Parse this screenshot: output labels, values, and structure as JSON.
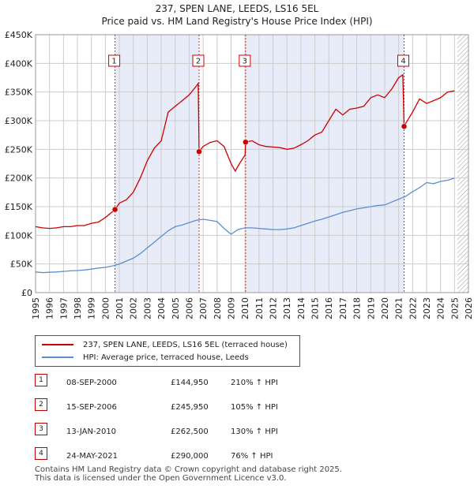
{
  "title": {
    "line1": "237, SPEN LANE, LEEDS, LS16 5EL",
    "line2": "Price paid vs. HM Land Registry's House Price Index (HPI)"
  },
  "colors": {
    "property": "#cc0000",
    "hpi": "#5b8ed0",
    "shade": "#dde4f5",
    "grid": "#cccccc",
    "marker_border": "#cc0000",
    "future_hatch": "#999999"
  },
  "legend": {
    "property_label": "237, SPEN LANE, LEEDS, LS16 5EL (terraced house)",
    "hpi_label": "HPI: Average price, terraced house, Leeds"
  },
  "sales": [
    {
      "num": "1",
      "date": "08-SEP-2000",
      "price": "£144,950",
      "hpi": "210% ↑ HPI"
    },
    {
      "num": "2",
      "date": "15-SEP-2006",
      "price": "£245,950",
      "hpi": "105% ↑ HPI"
    },
    {
      "num": "3",
      "date": "13-JAN-2010",
      "price": "£262,500",
      "hpi": "130% ↑ HPI"
    },
    {
      "num": "4",
      "date": "24-MAY-2021",
      "price": "£290,000",
      "hpi": "76% ↑ HPI"
    }
  ],
  "footer": {
    "line1": "Contains HM Land Registry data © Crown copyright and database right 2025.",
    "line2": "This data is licensed under the Open Government Licence v3.0."
  },
  "chart_data": {
    "type": "line",
    "title": "237, SPEN LANE, LEEDS, LS16 5EL",
    "subtitle": "Price paid vs. HM Land Registry's House Price Index (HPI)",
    "xlabel": "",
    "ylabel": "",
    "xlim": [
      1995,
      2026
    ],
    "ylim": [
      0,
      450000
    ],
    "x_ticks": [
      1995,
      1996,
      1997,
      1998,
      1999,
      2000,
      2001,
      2002,
      2003,
      2004,
      2005,
      2006,
      2007,
      2008,
      2009,
      2010,
      2011,
      2012,
      2013,
      2014,
      2015,
      2016,
      2017,
      2018,
      2019,
      2020,
      2021,
      2022,
      2023,
      2024,
      2025,
      2026
    ],
    "x_tick_labels": [
      "1995",
      "1996",
      "1997",
      "1998",
      "1999",
      "2000",
      "2001",
      "2002",
      "2003",
      "2004",
      "2005",
      "2006",
      "2007",
      "2008",
      "2009",
      "2010",
      "2011",
      "2012",
      "2013",
      "2014",
      "2015",
      "2016",
      "2017",
      "2018",
      "2019",
      "2020",
      "2021",
      "2022",
      "2023",
      "2024",
      "2025",
      "2026"
    ],
    "y_ticks": [
      0,
      50000,
      100000,
      150000,
      200000,
      250000,
      300000,
      350000,
      400000,
      450000
    ],
    "y_tick_labels": [
      "£0",
      "£50K",
      "£100K",
      "£150K",
      "£200K",
      "£250K",
      "£300K",
      "£350K",
      "£400K",
      "£450K"
    ],
    "grid": true,
    "legend_position": "bottom",
    "shaded_periods": [
      [
        2000.69,
        2006.71
      ],
      [
        2010.04,
        2021.39
      ]
    ],
    "future_hatch_from": 2025.2,
    "series": [
      {
        "name": "237, SPEN LANE, LEEDS, LS16 5EL (terraced house)",
        "x": [
          1995.0,
          1995.5,
          1996.0,
          1996.5,
          1997.0,
          1997.5,
          1998.0,
          1998.5,
          1999.0,
          1999.5,
          2000.0,
          2000.69,
          2001.0,
          2001.5,
          2002.0,
          2002.5,
          2003.0,
          2003.5,
          2004.0,
          2004.5,
          2005.0,
          2005.5,
          2006.0,
          2006.5,
          2006.65,
          2006.71,
          2007.0,
          2007.5,
          2008.0,
          2008.5,
          2009.0,
          2009.3,
          2009.6,
          2010.0,
          2010.04,
          2010.5,
          2011.0,
          2011.5,
          2012.0,
          2012.5,
          2013.0,
          2013.5,
          2014.0,
          2014.5,
          2015.0,
          2015.5,
          2016.0,
          2016.5,
          2017.0,
          2017.5,
          2018.0,
          2018.5,
          2019.0,
          2019.5,
          2020.0,
          2020.5,
          2021.0,
          2021.3,
          2021.35,
          2021.39,
          2021.5,
          2022.0,
          2022.5,
          2023.0,
          2023.5,
          2024.0,
          2024.5,
          2025.0
        ],
        "values": [
          115000,
          113000,
          112000,
          113000,
          115000,
          115000,
          117000,
          117000,
          121000,
          123000,
          131000,
          144950,
          156000,
          162000,
          175000,
          200000,
          230000,
          252000,
          265000,
          315000,
          325000,
          335000,
          345000,
          360000,
          365000,
          245950,
          255000,
          262000,
          265000,
          255000,
          225000,
          212000,
          225000,
          240000,
          262500,
          265000,
          258000,
          255000,
          254000,
          253000,
          250000,
          252000,
          258000,
          265000,
          275000,
          280000,
          300000,
          320000,
          310000,
          320000,
          322000,
          325000,
          340000,
          345000,
          340000,
          355000,
          375000,
          380000,
          330000,
          290000,
          295000,
          315000,
          338000,
          330000,
          335000,
          340000,
          350000,
          352000
        ]
      },
      {
        "name": "HPI: Average price, terraced house, Leeds",
        "x": [
          1995.0,
          1995.5,
          1996.0,
          1996.5,
          1997.0,
          1997.5,
          1998.0,
          1998.5,
          1999.0,
          1999.5,
          2000.0,
          2000.5,
          2001.0,
          2001.5,
          2002.0,
          2002.5,
          2003.0,
          2003.5,
          2004.0,
          2004.5,
          2005.0,
          2005.5,
          2006.0,
          2006.5,
          2007.0,
          2007.5,
          2008.0,
          2008.5,
          2009.0,
          2009.5,
          2010.0,
          2010.5,
          2011.0,
          2011.5,
          2012.0,
          2012.5,
          2013.0,
          2013.5,
          2014.0,
          2014.5,
          2015.0,
          2015.5,
          2016.0,
          2016.5,
          2017.0,
          2017.5,
          2018.0,
          2018.5,
          2019.0,
          2019.5,
          2020.0,
          2020.5,
          2021.0,
          2021.5,
          2022.0,
          2022.5,
          2023.0,
          2023.5,
          2024.0,
          2024.5,
          2025.0
        ],
        "values": [
          36000,
          35000,
          35500,
          36000,
          37000,
          38000,
          38500,
          39500,
          41000,
          43000,
          44000,
          46500,
          50000,
          55000,
          60000,
          68000,
          78000,
          88000,
          98000,
          108000,
          115000,
          118000,
          122000,
          126000,
          128000,
          126000,
          124000,
          112000,
          102000,
          110000,
          113000,
          113000,
          112000,
          111000,
          110000,
          110000,
          111000,
          113000,
          117000,
          121000,
          125000,
          128000,
          132000,
          136000,
          140000,
          143000,
          146000,
          148000,
          150000,
          152000,
          153000,
          158000,
          163000,
          168000,
          176000,
          183000,
          192000,
          190000,
          194000,
          196000,
          200000
        ]
      }
    ],
    "sale_markers": [
      {
        "label": "1",
        "x": 2000.69,
        "value": 144950
      },
      {
        "label": "2",
        "x": 2006.71,
        "value": 245950
      },
      {
        "label": "3",
        "x": 2010.04,
        "value": 262500
      },
      {
        "label": "4",
        "x": 2021.39,
        "value": 290000
      }
    ]
  }
}
